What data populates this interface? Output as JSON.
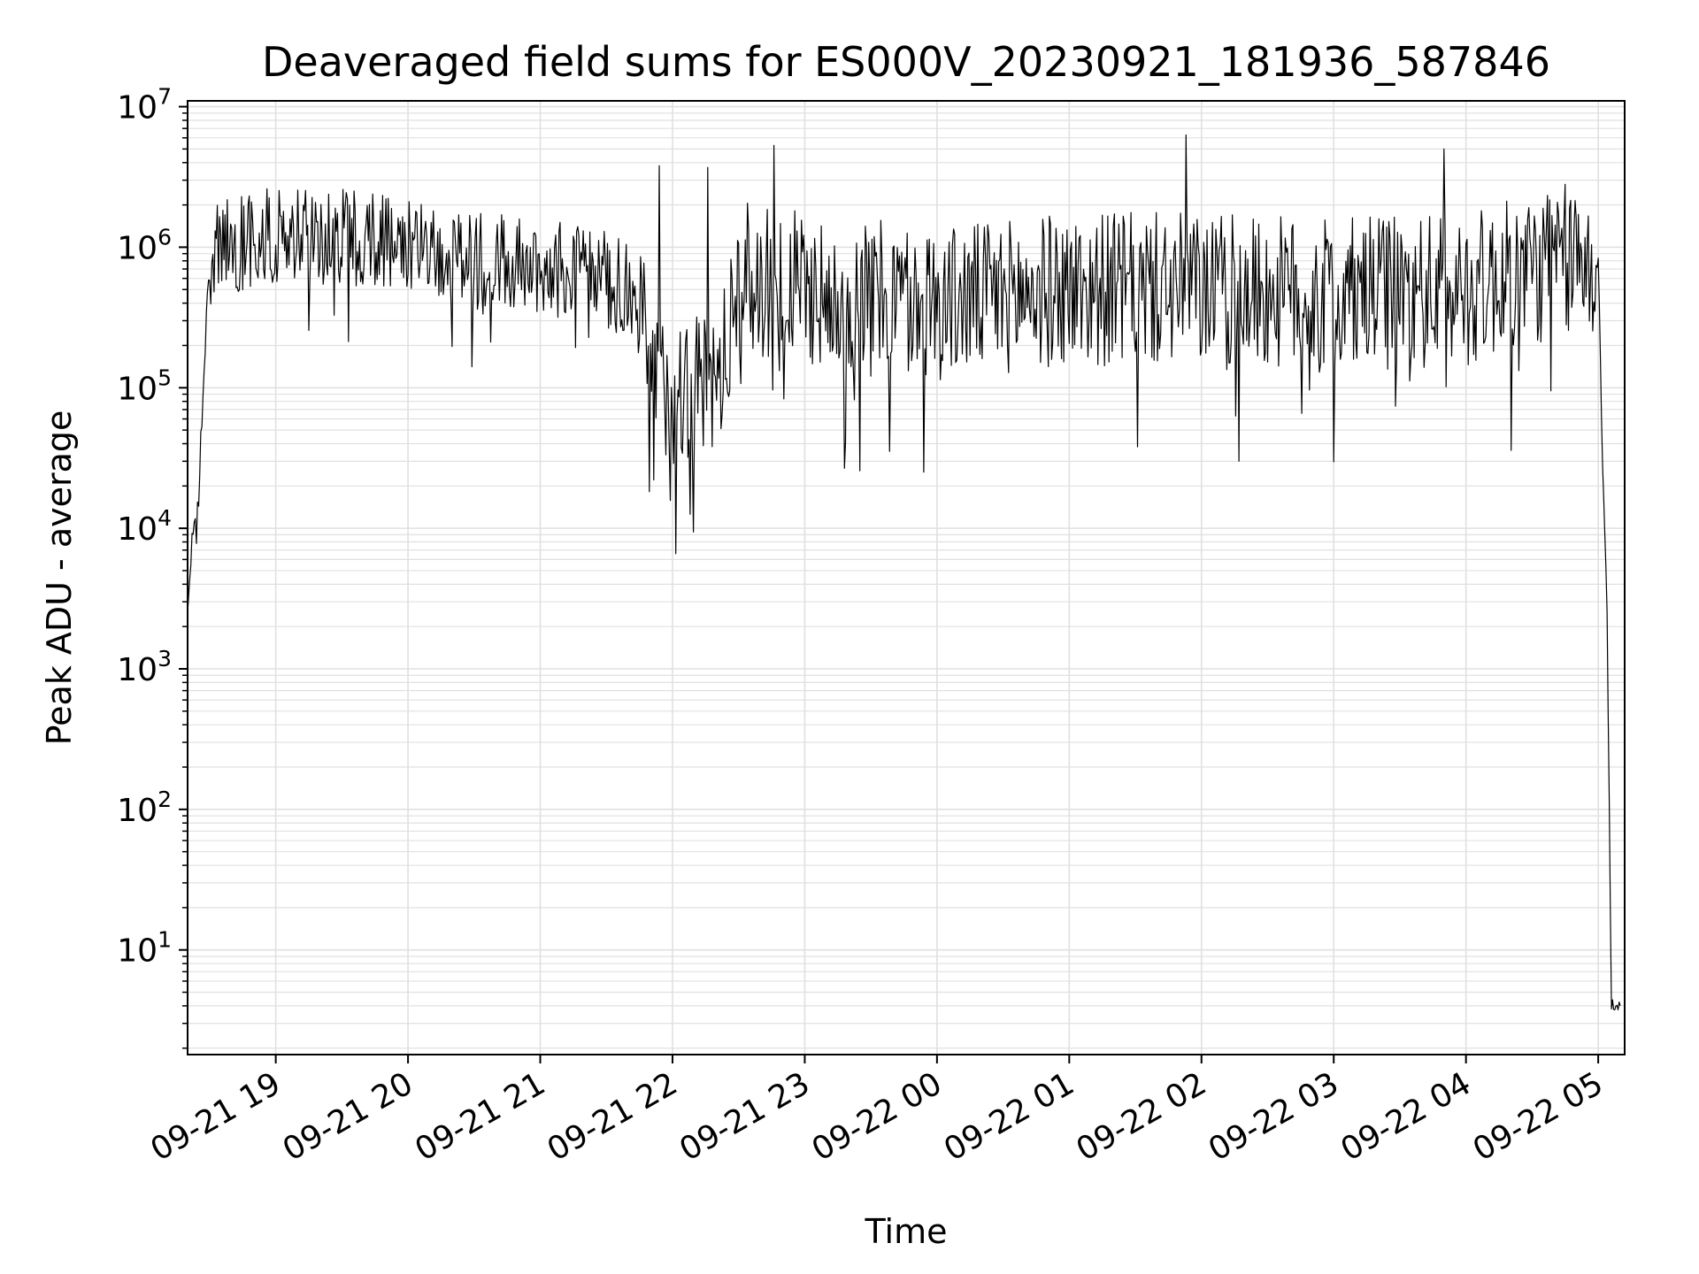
{
  "chart_data": {
    "type": "line",
    "title": "Deaveraged field sums for ES000V_20230921_181936_587846",
    "xlabel": "Time",
    "ylabel": "Peak ADU - average",
    "yscale": "log",
    "ylim": [
      1.8,
      11000000
    ],
    "xlim": [
      "2023-09-21 18:20",
      "2023-09-22 05:12"
    ],
    "grid": true,
    "line_color": "#000000",
    "grid_color": "#e0e0e0",
    "y_ticks": [
      {
        "base": "10",
        "exp": "1",
        "value": 10
      },
      {
        "base": "10",
        "exp": "2",
        "value": 100
      },
      {
        "base": "10",
        "exp": "3",
        "value": 1000
      },
      {
        "base": "10",
        "exp": "4",
        "value": 10000
      },
      {
        "base": "10",
        "exp": "5",
        "value": 100000
      },
      {
        "base": "10",
        "exp": "6",
        "value": 1000000
      },
      {
        "base": "10",
        "exp": "7",
        "value": 10000000
      }
    ],
    "x_ticks": [
      {
        "label": "09-21 19",
        "time": "2023-09-21 19:00"
      },
      {
        "label": "09-21 20",
        "time": "2023-09-21 20:00"
      },
      {
        "label": "09-21 21",
        "time": "2023-09-21 21:00"
      },
      {
        "label": "09-21 22",
        "time": "2023-09-21 22:00"
      },
      {
        "label": "09-21 23",
        "time": "2023-09-21 23:00"
      },
      {
        "label": "09-22 00",
        "time": "2023-09-22 00:00"
      },
      {
        "label": "09-22 01",
        "time": "2023-09-22 01:00"
      },
      {
        "label": "09-22 02",
        "time": "2023-09-22 02:00"
      },
      {
        "label": "09-22 03",
        "time": "2023-09-22 03:00"
      },
      {
        "label": "09-22 04",
        "time": "2023-09-22 04:00"
      },
      {
        "label": "09-22 05",
        "time": "2023-09-22 05:00"
      }
    ],
    "series": [
      {
        "points": [
          [
            "2023-09-21 18:20",
            2500
          ],
          [
            "2023-09-21 18:22",
            8000
          ],
          [
            "2023-09-21 18:25",
            15000
          ],
          [
            "2023-09-21 18:27",
            100000
          ],
          [
            "2023-09-21 18:29",
            400000
          ],
          [
            "2023-09-21 18:32",
            1000000
          ],
          [
            "2023-09-21 19:00",
            1200000
          ],
          [
            "2023-09-21 19:30",
            1200000
          ],
          [
            "2023-09-21 20:00",
            1100000
          ],
          [
            "2023-09-21 20:30",
            800000
          ],
          [
            "2023-09-21 21:00",
            750000
          ],
          [
            "2023-09-21 21:30",
            600000
          ],
          [
            "2023-09-21 21:45",
            400000
          ],
          [
            "2023-09-21 21:50",
            120000
          ],
          [
            "2023-09-21 22:00",
            100000
          ],
          [
            "2023-09-21 22:20",
            110000
          ],
          [
            "2023-09-21 22:30",
            600000
          ],
          [
            "2023-09-21 23:00",
            500000
          ],
          [
            "2023-09-22 00:00",
            400000
          ],
          [
            "2023-09-22 01:00",
            500000
          ],
          [
            "2023-09-22 02:00",
            500000
          ],
          [
            "2023-09-22 03:00",
            450000
          ],
          [
            "2023-09-22 04:00",
            500000
          ],
          [
            "2023-09-22 04:45",
            800000
          ],
          [
            "2023-09-22 05:00",
            800000
          ],
          [
            "2023-09-22 05:02",
            30000
          ],
          [
            "2023-09-22 05:04",
            2700
          ],
          [
            "2023-09-22 05:06",
            4
          ],
          [
            "2023-09-22 05:10",
            4
          ]
        ],
        "spikes": [
          [
            "2023-09-21 21:54",
            3800000
          ],
          [
            "2023-09-21 22:16",
            3700000
          ],
          [
            "2023-09-21 22:46",
            5300000
          ],
          [
            "2023-09-22 01:53",
            6300000
          ],
          [
            "2023-09-22 03:50",
            5000000
          ]
        ]
      }
    ]
  }
}
